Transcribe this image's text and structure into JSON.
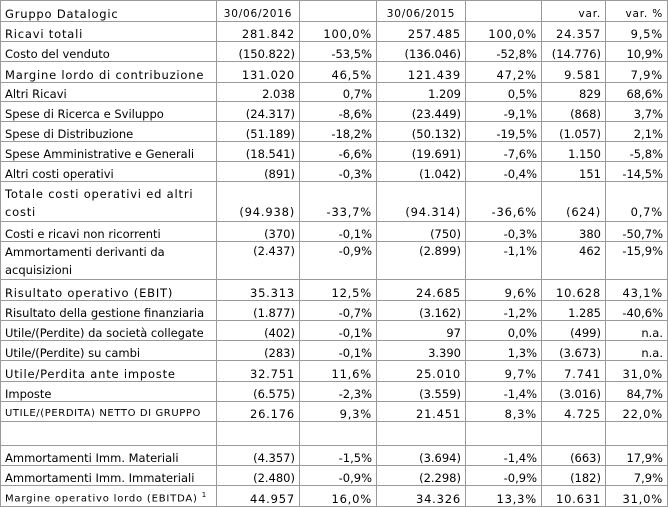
{
  "header": {
    "title": "Gruppo Datalogic",
    "col_2016": "30/06/2016",
    "col_2015": "30/06/2015",
    "col_var": "var.",
    "col_var_pct": "var. %"
  },
  "rows": [
    {
      "label": "Ricavi totali",
      "v2016": "281.842",
      "p2016": "100,0%",
      "v2015": "257.485",
      "p2015": "100,0%",
      "var": "24.357",
      "varp": "9,5%"
    },
    {
      "label": "Costo del venduto",
      "v2016": "(150.822)",
      "p2016": "-53,5%",
      "v2015": "(136.046)",
      "p2015": "-52,8%",
      "var": "(14.776)",
      "varp": "10,9%"
    },
    {
      "label": "Margine lordo di contribuzione",
      "v2016": "131.020",
      "p2016": "46,5%",
      "v2015": "121.439",
      "p2015": "47,2%",
      "var": "9.581",
      "varp": "7,9%"
    },
    {
      "label": "Altri Ricavi",
      "v2016": "2.038",
      "p2016": "0,7%",
      "v2015": "1.209",
      "p2015": "0,5%",
      "var": "829",
      "varp": "68,6%"
    },
    {
      "label": "Spese di Ricerca e Sviluppo",
      "v2016": "(24.317)",
      "p2016": "-8,6%",
      "v2015": "(23.449)",
      "p2015": "-9,1%",
      "var": "(868)",
      "varp": "3,7%"
    },
    {
      "label": "Spese di Distribuzione",
      "v2016": "(51.189)",
      "p2016": "-18,2%",
      "v2015": "(50.132)",
      "p2015": "-19,5%",
      "var": "(1.057)",
      "varp": "2,1%"
    },
    {
      "label": "Spese Amministrative e Generali",
      "v2016": "(18.541)",
      "p2016": "-6,6%",
      "v2015": "(19.691)",
      "p2015": "-7,6%",
      "var": "1.150",
      "varp": "-5,8%"
    },
    {
      "label": "Altri costi operativi",
      "v2016": "(891)",
      "p2016": "-0,3%",
      "v2015": "(1.042)",
      "p2015": "-0,4%",
      "var": "151",
      "varp": "-14,5%"
    },
    {
      "label": "Totale costi operativi ed altri costi",
      "v2016": "(94.938)",
      "p2016": "-33,7%",
      "v2015": "(94.314)",
      "p2015": "-36,6%",
      "var": "(624)",
      "varp": "0,7%"
    },
    {
      "label": "Costi e ricavi non ricorrenti",
      "v2016": "(370)",
      "p2016": "-0,1%",
      "v2015": "(750)",
      "p2015": "-0,3%",
      "var": "380",
      "varp": "-50,7%"
    },
    {
      "label": "Ammortamenti derivanti da acquisizioni",
      "v2016": "(2.437)",
      "p2016": "-0,9%",
      "v2015": "(2.899)",
      "p2015": "-1,1%",
      "var": "462",
      "varp": "-15,9%"
    },
    {
      "label": "Risultato operativo (EBIT)",
      "v2016": "35.313",
      "p2016": "12,5%",
      "v2015": "24.685",
      "p2015": "9,6%",
      "var": "10.628",
      "varp": "43,1%"
    },
    {
      "label": "Risultato della gestione finanziaria",
      "v2016": "(1.877)",
      "p2016": "-0,7%",
      "v2015": "(3.162)",
      "p2015": "-1,2%",
      "var": "1.285",
      "varp": "-40,6%"
    },
    {
      "label": "Utile/(Perdite) da società collegate",
      "v2016": "(402)",
      "p2016": "-0,1%",
      "v2015": "97",
      "p2015": "0,0%",
      "var": "(499)",
      "varp": "n.a."
    },
    {
      "label": "Utile/(Perdite) su cambi",
      "v2016": "(283)",
      "p2016": "-0,1%",
      "v2015": "3.390",
      "p2015": "1,3%",
      "var": "(3.673)",
      "varp": "n.a."
    },
    {
      "label": "Utile/Perdita ante imposte",
      "v2016": "32.751",
      "p2016": "11,6%",
      "v2015": "25.010",
      "p2015": "9,7%",
      "var": "7.741",
      "varp": "31,0%"
    },
    {
      "label": "Imposte",
      "v2016": "(6.575)",
      "p2016": "-2,3%",
      "v2015": "(3.559)",
      "p2015": "-1,4%",
      "var": "(3.016)",
      "varp": "84,7%"
    },
    {
      "label": "UTILE/(PERDITA) NETTO DI GRUPPO",
      "v2016": "26.176",
      "p2016": "9,3%",
      "v2015": "21.451",
      "p2015": "8,3%",
      "var": "4.725",
      "varp": "22,0%"
    }
  ],
  "amort_rows": [
    {
      "label": "Ammortamenti Imm. Materiali",
      "v2016": "(4.357)",
      "p2016": "-1,5%",
      "v2015": "(3.694)",
      "p2015": "-1,4%",
      "var": "(663)",
      "varp": "17,9%"
    },
    {
      "label": "Ammortamenti Imm. Immateriali",
      "v2016": "(2.480)",
      "p2016": "-0,9%",
      "v2015": "(2.298)",
      "p2015": "-0,9%",
      "var": "(182)",
      "varp": "7,9%"
    },
    {
      "label": "Margine operativo lordo (EBITDA)",
      "footnote": "1",
      "v2016": "44.957",
      "p2016": "16,0%",
      "v2015": "34.326",
      "p2015": "13,3%",
      "var": "10.631",
      "varp": "31,0%"
    }
  ]
}
